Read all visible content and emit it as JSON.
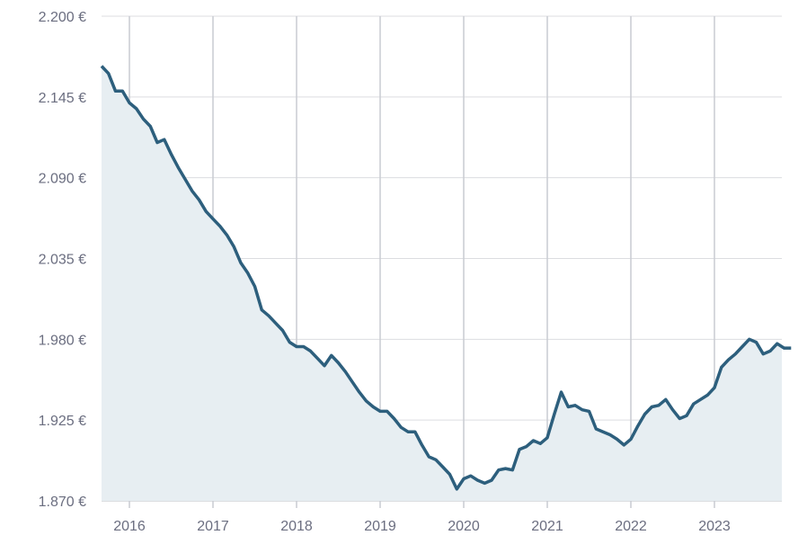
{
  "chart_data": {
    "type": "area",
    "title": "",
    "xlabel": "",
    "ylabel": "",
    "ylim": [
      1870,
      2200
    ],
    "y_ticks": [
      1870,
      1925,
      1980,
      2035,
      2090,
      2145,
      2200
    ],
    "y_tick_labels": [
      "1.870 €",
      "1.925 €",
      "1.980 €",
      "2.035 €",
      "2.090 €",
      "2.145 €",
      "2.200 €"
    ],
    "x_range": [
      "2015-09",
      "2023-12"
    ],
    "x_ticks": [
      "2016",
      "2017",
      "2018",
      "2019",
      "2020",
      "2021",
      "2022",
      "2023"
    ],
    "grid": true,
    "colors": {
      "line": "#2d5f7d",
      "fill": "#e7eef2",
      "grid": "#dcdde0",
      "year_grid": "#c9ccd2"
    },
    "start_month": "2015-09",
    "values": [
      2166,
      2161,
      2149,
      2149,
      2141,
      2137,
      2130,
      2125,
      2114,
      2116,
      2106,
      2097,
      2089,
      2081,
      2075,
      2067,
      2062,
      2057,
      2051,
      2043,
      2032,
      2025,
      2016,
      2000,
      1996,
      1991,
      1986,
      1978,
      1975,
      1975,
      1972,
      1967,
      1962,
      1969,
      1964,
      1958,
      1951,
      1944,
      1938,
      1934,
      1931,
      1931,
      1926,
      1920,
      1917,
      1917,
      1908,
      1900,
      1898,
      1893,
      1888,
      1878,
      1885,
      1887,
      1884,
      1882,
      1884,
      1891,
      1892,
      1891,
      1905,
      1907,
      1911,
      1909,
      1913,
      1929,
      1944,
      1934,
      1935,
      1932,
      1931,
      1919,
      1917,
      1915,
      1912,
      1908,
      1912,
      1921,
      1929,
      1934,
      1935,
      1939,
      1932,
      1926,
      1928,
      1936,
      1939,
      1942,
      1947,
      1961,
      1966,
      1970,
      1975,
      1980,
      1978,
      1970,
      1972,
      1977,
      1974,
      1974
    ]
  }
}
